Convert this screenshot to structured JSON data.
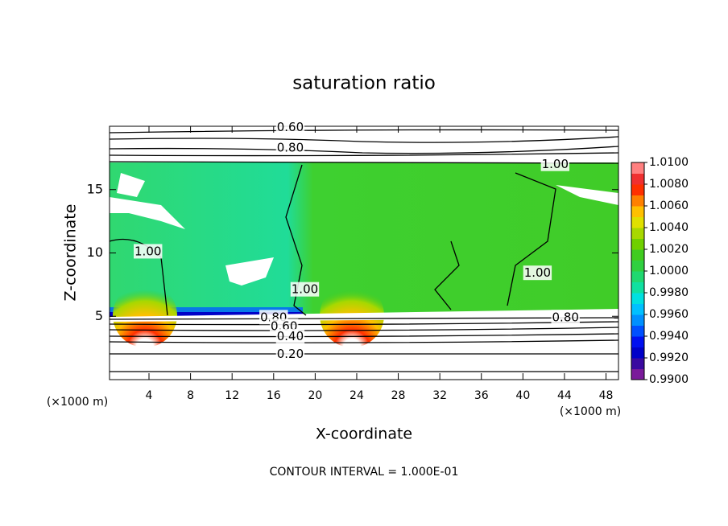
{
  "chart_data": {
    "type": "contour",
    "title": "saturation ratio",
    "x_label": "X-coordinate",
    "y_label": "Z-coordinate",
    "x_unit": "(×1000 m)",
    "y_unit": "(×1000 m)",
    "footnote": "CONTOUR INTERVAL = 1.000E-01",
    "xlim": [
      0.2,
      49.2
    ],
    "xticks": [
      4,
      8,
      12,
      16,
      20,
      24,
      28,
      32,
      36,
      40,
      44,
      48
    ],
    "ylim": [
      0,
      20
    ],
    "yticks": [
      5,
      10,
      15
    ],
    "contour_labels": [
      {
        "value": 0.6,
        "label": "0.60",
        "x": 17.6,
        "y": 19.9
      },
      {
        "value": 0.8,
        "label": "0.80",
        "x": 17.6,
        "y": 18.3
      },
      {
        "value": 1,
        "label": "1.00",
        "x": 43.1,
        "y": 17.0
      },
      {
        "value": 1,
        "label": "1.00",
        "x": 3.9,
        "y": 10.1
      },
      {
        "value": 1,
        "label": "1.00",
        "x": 19.0,
        "y": 7.1
      },
      {
        "value": 1,
        "label": "1.00",
        "x": 41.4,
        "y": 8.4
      },
      {
        "value": 0.8,
        "label": "0.80",
        "x": 16.0,
        "y": 4.9
      },
      {
        "value": 0.6,
        "label": "0.60",
        "x": 17.0,
        "y": 4.2
      },
      {
        "value": 0.4,
        "label": "0.40",
        "x": 17.6,
        "y": 3.4
      },
      {
        "value": 0.2,
        "label": "0.20",
        "x": 17.6,
        "y": 2.0
      },
      {
        "value": 0.8,
        "label": "0.80",
        "x": 44.1,
        "y": 4.9
      }
    ],
    "colorbar": {
      "lim": [
        0.99,
        1.01
      ],
      "ticks": [
        {
          "value": 1.01,
          "label": "1.0100"
        },
        {
          "value": 1.008,
          "label": "1.0080"
        },
        {
          "value": 1.006,
          "label": "1.0060"
        },
        {
          "value": 1.004,
          "label": "1.0040"
        },
        {
          "value": 1.002,
          "label": "1.0020"
        },
        {
          "value": 1,
          "label": "1.0000"
        },
        {
          "value": 0.998,
          "label": "0.9980"
        },
        {
          "value": 0.996,
          "label": "0.9960"
        },
        {
          "value": 0.994,
          "label": "0.9940"
        },
        {
          "value": 0.992,
          "label": "0.9920"
        },
        {
          "value": 0.99,
          "label": "0.9900"
        }
      ],
      "colors": [
        "#7a1a9a",
        "#3a0aa0",
        "#0000c8",
        "#0010f0",
        "#0050ff",
        "#0090ff",
        "#00c0ff",
        "#00e0e0",
        "#10e0a0",
        "#20d870",
        "#30d040",
        "#40cc20",
        "#70d000",
        "#a8d800",
        "#e0e000",
        "#ffc000",
        "#ff8000",
        "#ff3000",
        "#f03030",
        "#ff8080"
      ]
    }
  }
}
